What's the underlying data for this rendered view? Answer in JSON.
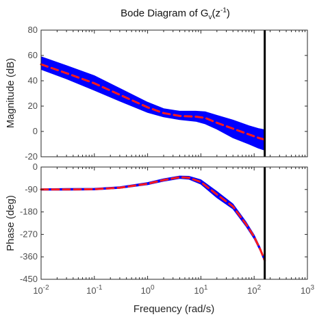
{
  "chart_data": [
    {
      "type": "line",
      "panel": "magnitude",
      "title_parts": {
        "a": "Bode Diagram of G",
        "sub": "v",
        "b": "(z",
        "sup": "-1",
        "c": ")"
      },
      "ylabel": "Magnitude (dB)",
      "xscale": "log",
      "xlim": [
        0.01,
        1000
      ],
      "ylim": [
        -20,
        80
      ],
      "yticks": [
        "80",
        "60",
        "40",
        "20",
        "0",
        "-20"
      ],
      "yticks_values": [
        80,
        60,
        40,
        20,
        0,
        -20
      ],
      "grid": false,
      "series": [
        {
          "role": "nominal",
          "color": "#ff1a1a",
          "style": "dashed",
          "x": [
            0.01,
            0.03,
            0.1,
            0.3,
            1,
            2,
            4,
            8,
            12,
            20,
            40,
            80,
            120,
            158
          ],
          "y": [
            53,
            46,
            38,
            29,
            19,
            14.5,
            12.2,
            11.7,
            10.7,
            6.8,
            2.2,
            -2.4,
            -5,
            -6.5
          ]
        },
        {
          "role": "uncertainty-band",
          "color": "#0000ff",
          "x": [
            0.01,
            0.03,
            0.1,
            0.3,
            1,
            2,
            4,
            8,
            12,
            20,
            40,
            80,
            120,
            158
          ],
          "upper": [
            59,
            52,
            44,
            34,
            23,
            18,
            16,
            16,
            15.5,
            12.7,
            9,
            4.5,
            2.3,
            1.3
          ],
          "lower": [
            49,
            41.5,
            32.5,
            24,
            15,
            11.5,
            9.3,
            8,
            6,
            1.8,
            -5,
            -10,
            -13.2,
            -14.8
          ]
        }
      ],
      "annotations": [
        {
          "type": "vertical-line",
          "x": 158,
          "color": "#000000"
        }
      ]
    },
    {
      "type": "line",
      "panel": "phase",
      "ylabel": "Phase (deg)",
      "xlabel": "Frequency  (rad/s)",
      "xscale": "log",
      "xlim": [
        0.01,
        1000
      ],
      "ylim": [
        -450,
        0
      ],
      "yticks": [
        "0",
        "-90",
        "-180",
        "-270",
        "-360",
        "-450"
      ],
      "yticks_values": [
        0,
        -90,
        -180,
        -270,
        -360,
        -450
      ],
      "xticks": [
        {
          "base": "10",
          "exp": "-2",
          "value": 0.01
        },
        {
          "base": "10",
          "exp": "-1",
          "value": 0.1
        },
        {
          "base": "10",
          "exp": "0",
          "value": 1
        },
        {
          "base": "10",
          "exp": "1",
          "value": 10
        },
        {
          "base": "10",
          "exp": "2",
          "value": 100
        },
        {
          "base": "10",
          "exp": "3",
          "value": 1000
        }
      ],
      "grid": false,
      "series": [
        {
          "role": "nominal",
          "color": "#ff1a1a",
          "style": "dashed",
          "x": [
            0.01,
            0.03,
            0.1,
            0.3,
            1,
            2,
            4,
            6,
            10,
            20,
            40,
            70,
            100,
            130,
            158
          ],
          "y": [
            -90,
            -90,
            -89,
            -83,
            -67,
            -52,
            -41,
            -43,
            -60,
            -110,
            -158,
            -228,
            -280,
            -330,
            -375
          ]
        },
        {
          "role": "uncertainty-band",
          "color": "#0000ff",
          "x": [
            0.01,
            0.03,
            0.1,
            0.3,
            1,
            2,
            4,
            6,
            10,
            20,
            40,
            70,
            100,
            130,
            158
          ],
          "upper": [
            -87,
            -86,
            -85,
            -79,
            -62,
            -47,
            -36,
            -37,
            -51,
            -98,
            -148,
            -219,
            -272,
            -323,
            -368
          ],
          "lower": [
            -93,
            -93,
            -92,
            -86,
            -71,
            -57,
            -46,
            -49,
            -69,
            -123,
            -168,
            -237,
            -288,
            -337,
            -382
          ]
        }
      ],
      "annotations": [
        {
          "type": "vertical-line",
          "x": 158,
          "color": "#000000"
        }
      ]
    }
  ]
}
